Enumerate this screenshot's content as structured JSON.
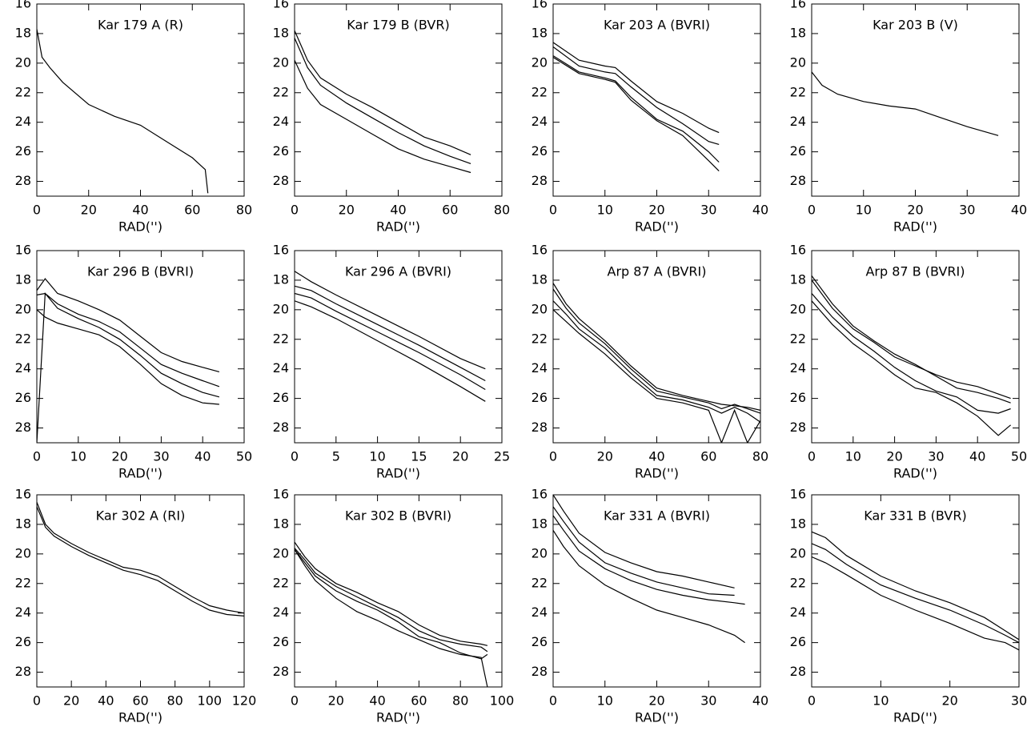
{
  "chart_data": [
    {
      "type": "line",
      "title": "Kar 179 A (R)",
      "x_label": "RAD('')",
      "xlim": [
        0,
        80
      ],
      "xticks": [
        0,
        20,
        40,
        60,
        80
      ],
      "ylim": [
        29,
        16
      ],
      "yticks": [
        16,
        18,
        20,
        22,
        24,
        26,
        28
      ],
      "x": [
        0,
        2,
        5,
        10,
        20,
        30,
        40,
        50,
        60,
        65,
        66
      ],
      "series": [
        {
          "color": "#000000",
          "values": [
            17.7,
            19.6,
            20.3,
            21.3,
            22.8,
            23.6,
            24.2,
            25.3,
            26.4,
            27.2,
            28.8
          ]
        }
      ]
    },
    {
      "type": "line",
      "title": "Kar 179 B (BVR)",
      "x_label": "RAD('')",
      "xlim": [
        0,
        80
      ],
      "xticks": [
        0,
        20,
        40,
        60,
        80
      ],
      "ylim": [
        29,
        16
      ],
      "yticks": [
        16,
        18,
        20,
        22,
        24,
        26,
        28
      ],
      "x": [
        0,
        5,
        10,
        20,
        30,
        40,
        50,
        60,
        68
      ],
      "series": [
        {
          "color": "#000000",
          "values": [
            17.8,
            19.8,
            21.0,
            22.1,
            23.0,
            24.0,
            25.0,
            25.6,
            26.2
          ]
        },
        {
          "color": "#000000",
          "values": [
            18.3,
            20.3,
            21.5,
            22.7,
            23.7,
            24.7,
            25.6,
            26.3,
            26.8
          ]
        },
        {
          "color": "#000000",
          "values": [
            19.8,
            21.7,
            22.8,
            23.8,
            24.8,
            25.8,
            26.5,
            27.0,
            27.4
          ]
        }
      ]
    },
    {
      "type": "line",
      "title": "Kar 203 A (BVRI)",
      "x_label": "RAD('')",
      "xlim": [
        0,
        40
      ],
      "xticks": [
        0,
        10,
        20,
        30,
        40
      ],
      "ylim": [
        29,
        16
      ],
      "yticks": [
        16,
        18,
        20,
        22,
        24,
        26,
        28
      ],
      "x": [
        0,
        5,
        10,
        12,
        15,
        20,
        25,
        30,
        32
      ],
      "series": [
        {
          "color": "#000000",
          "values": [
            18.6,
            19.8,
            20.2,
            20.3,
            21.2,
            22.6,
            23.4,
            24.4,
            24.7
          ]
        },
        {
          "color": "#000000",
          "values": [
            18.9,
            20.2,
            20.6,
            20.7,
            21.6,
            23.0,
            24.1,
            25.3,
            25.5
          ]
        },
        {
          "color": "#000000",
          "values": [
            19.5,
            20.6,
            21.0,
            21.2,
            22.3,
            23.8,
            24.6,
            26.0,
            26.7
          ]
        },
        {
          "color": "#000000",
          "values": [
            19.6,
            20.7,
            21.1,
            21.3,
            22.5,
            23.9,
            24.9,
            26.6,
            27.3
          ]
        }
      ]
    },
    {
      "type": "line",
      "title": "Kar 203 B (V)",
      "x_label": "RAD('')",
      "xlim": [
        0,
        40
      ],
      "xticks": [
        0,
        10,
        20,
        30,
        40
      ],
      "ylim": [
        29,
        16
      ],
      "yticks": [
        16,
        18,
        20,
        22,
        24,
        26,
        28
      ],
      "x": [
        0,
        2,
        5,
        10,
        15,
        20,
        25,
        30,
        36
      ],
      "series": [
        {
          "color": "#000000",
          "values": [
            20.6,
            21.5,
            22.1,
            22.6,
            22.9,
            23.1,
            23.7,
            24.3,
            24.9
          ]
        }
      ]
    },
    {
      "type": "line",
      "title": "Kar 296 B (BVRI)",
      "x_label": "RAD('')",
      "xlim": [
        0,
        50
      ],
      "xticks": [
        0,
        10,
        20,
        30,
        40,
        50
      ],
      "ylim": [
        29,
        16
      ],
      "yticks": [
        16,
        18,
        20,
        22,
        24,
        26,
        28
      ],
      "x": [
        0,
        2,
        5,
        10,
        15,
        20,
        25,
        30,
        35,
        40,
        44
      ],
      "series": [
        {
          "color": "#000000",
          "values": [
            18.7,
            17.9,
            18.9,
            19.4,
            20.0,
            20.7,
            21.8,
            22.9,
            23.5,
            23.9,
            24.2
          ]
        },
        {
          "color": "#000000",
          "values": [
            19.0,
            18.9,
            19.6,
            20.3,
            20.8,
            21.5,
            22.6,
            23.7,
            24.3,
            24.8,
            25.2
          ]
        },
        {
          "color": "#000000",
          "values": [
            29,
            18.9,
            19.9,
            20.6,
            21.2,
            22.0,
            23.1,
            24.3,
            25.0,
            25.6,
            25.9
          ]
        },
        {
          "color": "#000000",
          "values": [
            20.0,
            20.5,
            20.9,
            21.3,
            21.7,
            22.5,
            23.7,
            25.0,
            25.8,
            26.3,
            26.4
          ]
        }
      ]
    },
    {
      "type": "line",
      "title": "Kar 296 A (BVRI)",
      "x_label": "RAD('')",
      "xlim": [
        0,
        25
      ],
      "xticks": [
        0,
        5,
        10,
        15,
        20,
        25
      ],
      "ylim": [
        29,
        16
      ],
      "yticks": [
        16,
        18,
        20,
        22,
        24,
        26,
        28
      ],
      "x": [
        0,
        2,
        5,
        10,
        15,
        20,
        23
      ],
      "series": [
        {
          "color": "#000000",
          "values": [
            17.4,
            18.1,
            19.0,
            20.4,
            21.8,
            23.3,
            24.0
          ]
        },
        {
          "color": "#000000",
          "values": [
            18.4,
            18.7,
            19.6,
            21.0,
            22.4,
            23.9,
            24.8
          ]
        },
        {
          "color": "#000000",
          "values": [
            18.9,
            19.2,
            20.1,
            21.5,
            22.9,
            24.4,
            25.4
          ]
        },
        {
          "color": "#000000",
          "values": [
            19.4,
            19.8,
            20.6,
            22.1,
            23.6,
            25.2,
            26.2
          ]
        }
      ]
    },
    {
      "type": "line",
      "title": "Arp 87 A (BVRI)",
      "x_label": "RAD('')",
      "xlim": [
        0,
        80
      ],
      "xticks": [
        0,
        20,
        40,
        60,
        80
      ],
      "ylim": [
        29,
        16
      ],
      "yticks": [
        16,
        18,
        20,
        22,
        24,
        26,
        28
      ],
      "x": [
        0,
        5,
        10,
        20,
        30,
        40,
        50,
        60,
        65,
        70,
        75,
        80
      ],
      "series": [
        {
          "color": "#000000",
          "values": [
            18.2,
            19.6,
            20.6,
            22.1,
            23.8,
            25.3,
            25.8,
            26.2,
            26.4,
            26.5,
            26.6,
            26.8
          ]
        },
        {
          "color": "#000000",
          "values": [
            18.6,
            19.9,
            20.9,
            22.3,
            24.0,
            25.5,
            25.9,
            26.3,
            26.7,
            26.4,
            26.7,
            27.0
          ]
        },
        {
          "color": "#000000",
          "values": [
            19.4,
            20.3,
            21.3,
            22.6,
            24.3,
            25.8,
            26.1,
            26.6,
            27.0,
            26.6,
            27.0,
            27.6
          ]
        },
        {
          "color": "#000000",
          "values": [
            20.0,
            20.8,
            21.6,
            23.0,
            24.6,
            26.0,
            26.3,
            26.8,
            29,
            26.8,
            29,
            27.5
          ]
        }
      ]
    },
    {
      "type": "line",
      "title": "Arp 87 B (BVRI)",
      "x_label": "RAD('')",
      "xlim": [
        0,
        50
      ],
      "xticks": [
        0,
        10,
        20,
        30,
        40,
        50
      ],
      "ylim": [
        29,
        16
      ],
      "yticks": [
        16,
        18,
        20,
        22,
        24,
        26,
        28
      ],
      "x": [
        0,
        5,
        10,
        15,
        20,
        25,
        30,
        35,
        40,
        45,
        48
      ],
      "series": [
        {
          "color": "#000000",
          "values": [
            17.7,
            19.6,
            21.1,
            22.1,
            23.0,
            23.7,
            24.5,
            25.3,
            25.6,
            26.0,
            26.3
          ]
        },
        {
          "color": "#000000",
          "values": [
            18.0,
            19.9,
            21.3,
            22.2,
            23.2,
            23.8,
            24.4,
            24.9,
            25.2,
            25.7,
            26.0
          ]
        },
        {
          "color": "#000000",
          "values": [
            18.9,
            20.5,
            21.8,
            22.8,
            23.9,
            24.8,
            25.5,
            25.9,
            26.8,
            27.0,
            26.7
          ]
        },
        {
          "color": "#000000",
          "values": [
            19.4,
            21.0,
            22.3,
            23.3,
            24.4,
            25.3,
            25.6,
            26.3,
            27.2,
            28.5,
            27.8
          ]
        }
      ]
    },
    {
      "type": "line",
      "title": "Kar 302 A (RI)",
      "x_label": "RAD('')",
      "xlim": [
        0,
        120
      ],
      "xticks": [
        0,
        20,
        40,
        60,
        80,
        100,
        120
      ],
      "ylim": [
        29,
        16
      ],
      "yticks": [
        16,
        18,
        20,
        22,
        24,
        26,
        28
      ],
      "x": [
        0,
        5,
        10,
        20,
        30,
        40,
        50,
        60,
        70,
        80,
        90,
        100,
        110,
        120
      ],
      "series": [
        {
          "color": "#000000",
          "values": [
            16.5,
            18.0,
            18.6,
            19.3,
            19.9,
            20.4,
            20.9,
            21.1,
            21.5,
            22.2,
            22.9,
            23.5,
            23.8,
            24.0
          ]
        },
        {
          "color": "#000000",
          "values": [
            16.8,
            18.2,
            18.8,
            19.5,
            20.1,
            20.6,
            21.1,
            21.4,
            21.8,
            22.5,
            23.2,
            23.8,
            24.1,
            24.2
          ]
        }
      ]
    },
    {
      "type": "line",
      "title": "Kar 302 B (BVRI)",
      "x_label": "RAD('')",
      "xlim": [
        0,
        100
      ],
      "xticks": [
        0,
        20,
        40,
        60,
        80,
        100
      ],
      "ylim": [
        29,
        16
      ],
      "yticks": [
        16,
        18,
        20,
        22,
        24,
        26,
        28
      ],
      "x": [
        0,
        5,
        10,
        20,
        30,
        40,
        50,
        60,
        70,
        80,
        90,
        93
      ],
      "series": [
        {
          "color": "#000000",
          "values": [
            19.2,
            20.2,
            21.0,
            22.0,
            22.6,
            23.3,
            23.9,
            24.8,
            25.5,
            25.9,
            26.1,
            26.2
          ]
        },
        {
          "color": "#000000",
          "values": [
            19.6,
            20.4,
            21.3,
            22.2,
            22.9,
            23.6,
            24.3,
            25.2,
            25.8,
            26.1,
            26.3,
            26.6
          ]
        },
        {
          "color": "#000000",
          "values": [
            19.7,
            20.6,
            21.5,
            22.5,
            23.2,
            23.8,
            24.6,
            25.6,
            26.0,
            26.7,
            27.1,
            26.8
          ]
        },
        {
          "color": "#000000",
          "values": [
            19.7,
            20.8,
            21.8,
            23.0,
            23.9,
            24.5,
            25.2,
            25.8,
            26.4,
            26.8,
            27.0,
            29
          ]
        }
      ]
    },
    {
      "type": "line",
      "title": "Kar 331 A (BVRI)",
      "x_label": "RAD('')",
      "xlim": [
        0,
        40
      ],
      "xticks": [
        0,
        10,
        20,
        30,
        40
      ],
      "ylim": [
        29,
        16
      ],
      "yticks": [
        16,
        18,
        20,
        22,
        24,
        26,
        28
      ],
      "x": [
        0,
        2,
        5,
        10,
        15,
        20,
        25,
        30,
        35,
        37
      ],
      "series": [
        {
          "color": "#000000",
          "values": [
            16.0,
            17.1,
            18.6,
            19.9,
            20.6,
            21.2,
            21.5,
            21.9,
            22.3,
            null
          ]
        },
        {
          "color": "#000000",
          "values": [
            16.8,
            17.8,
            19.2,
            20.6,
            21.3,
            21.9,
            22.3,
            22.7,
            22.8,
            null
          ]
        },
        {
          "color": "#000000",
          "values": [
            17.4,
            18.4,
            19.8,
            21.0,
            21.8,
            22.4,
            22.8,
            23.1,
            23.3,
            23.4
          ]
        },
        {
          "color": "#000000",
          "values": [
            18.4,
            19.5,
            20.8,
            22.1,
            23.0,
            23.8,
            24.3,
            24.8,
            25.5,
            26.0
          ]
        }
      ]
    },
    {
      "type": "line",
      "title": "Kar 331 B (BVR)",
      "x_label": "RAD('')",
      "xlim": [
        0,
        30
      ],
      "xticks": [
        0,
        10,
        20,
        30
      ],
      "ylim": [
        29,
        16
      ],
      "yticks": [
        16,
        18,
        20,
        22,
        24,
        26,
        28
      ],
      "x": [
        0,
        2,
        5,
        10,
        15,
        20,
        25,
        28,
        30
      ],
      "series": [
        {
          "color": "#000000",
          "values": [
            18.5,
            18.9,
            20.1,
            21.5,
            22.5,
            23.3,
            24.3,
            25.2,
            25.8
          ]
        },
        {
          "color": "#000000",
          "values": [
            19.3,
            19.7,
            20.7,
            22.1,
            23.0,
            23.8,
            24.8,
            25.5,
            26.0
          ]
        },
        {
          "color": "#000000",
          "values": [
            20.2,
            20.6,
            21.4,
            22.8,
            23.8,
            24.7,
            25.7,
            26.0,
            26.5
          ]
        }
      ]
    }
  ]
}
